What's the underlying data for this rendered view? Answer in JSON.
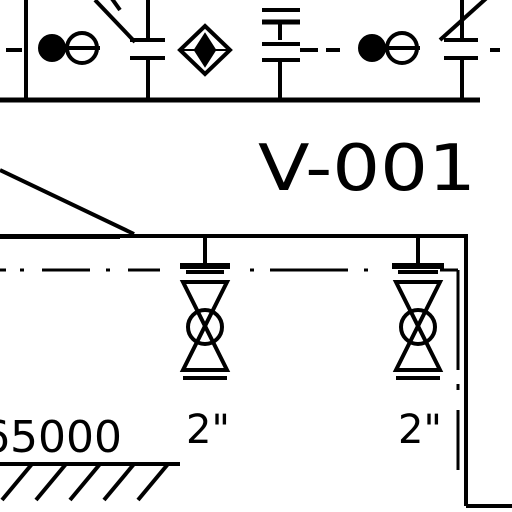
{
  "drawing": {
    "vessel_tag": "V-001",
    "elevation_text": "65000",
    "valves": [
      {
        "id": "left",
        "size_label": "2\""
      },
      {
        "id": "right",
        "size_label": "2\""
      }
    ]
  },
  "colors": {
    "line": "#000000",
    "background": "#ffffff"
  }
}
